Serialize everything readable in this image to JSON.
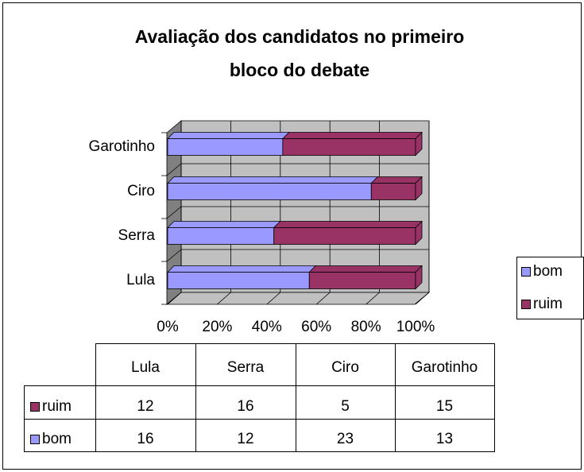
{
  "chart_data": {
    "type": "bar",
    "orientation": "horizontal",
    "stacking": "percent",
    "title": [
      "Avaliação dos candidatos no primeiro",
      "bloco do debate"
    ],
    "categories": [
      "Lula",
      "Serra",
      "Ciro",
      "Garotinho"
    ],
    "series": [
      {
        "name": "ruim",
        "color": "#993366",
        "values": [
          12,
          16,
          5,
          15
        ]
      },
      {
        "name": "bom",
        "color": "#9999ff",
        "values": [
          16,
          12,
          23,
          13
        ]
      }
    ],
    "xlim": [
      0,
      100
    ],
    "xticks": [
      {
        "value": 0,
        "label": "0%"
      },
      {
        "value": 20,
        "label": "20%"
      },
      {
        "value": 40,
        "label": "40%"
      },
      {
        "value": 60,
        "label": "60%"
      },
      {
        "value": 80,
        "label": "80%"
      },
      {
        "value": 100,
        "label": "100%"
      }
    ],
    "grid": true,
    "legend": "right",
    "data_table": true
  }
}
